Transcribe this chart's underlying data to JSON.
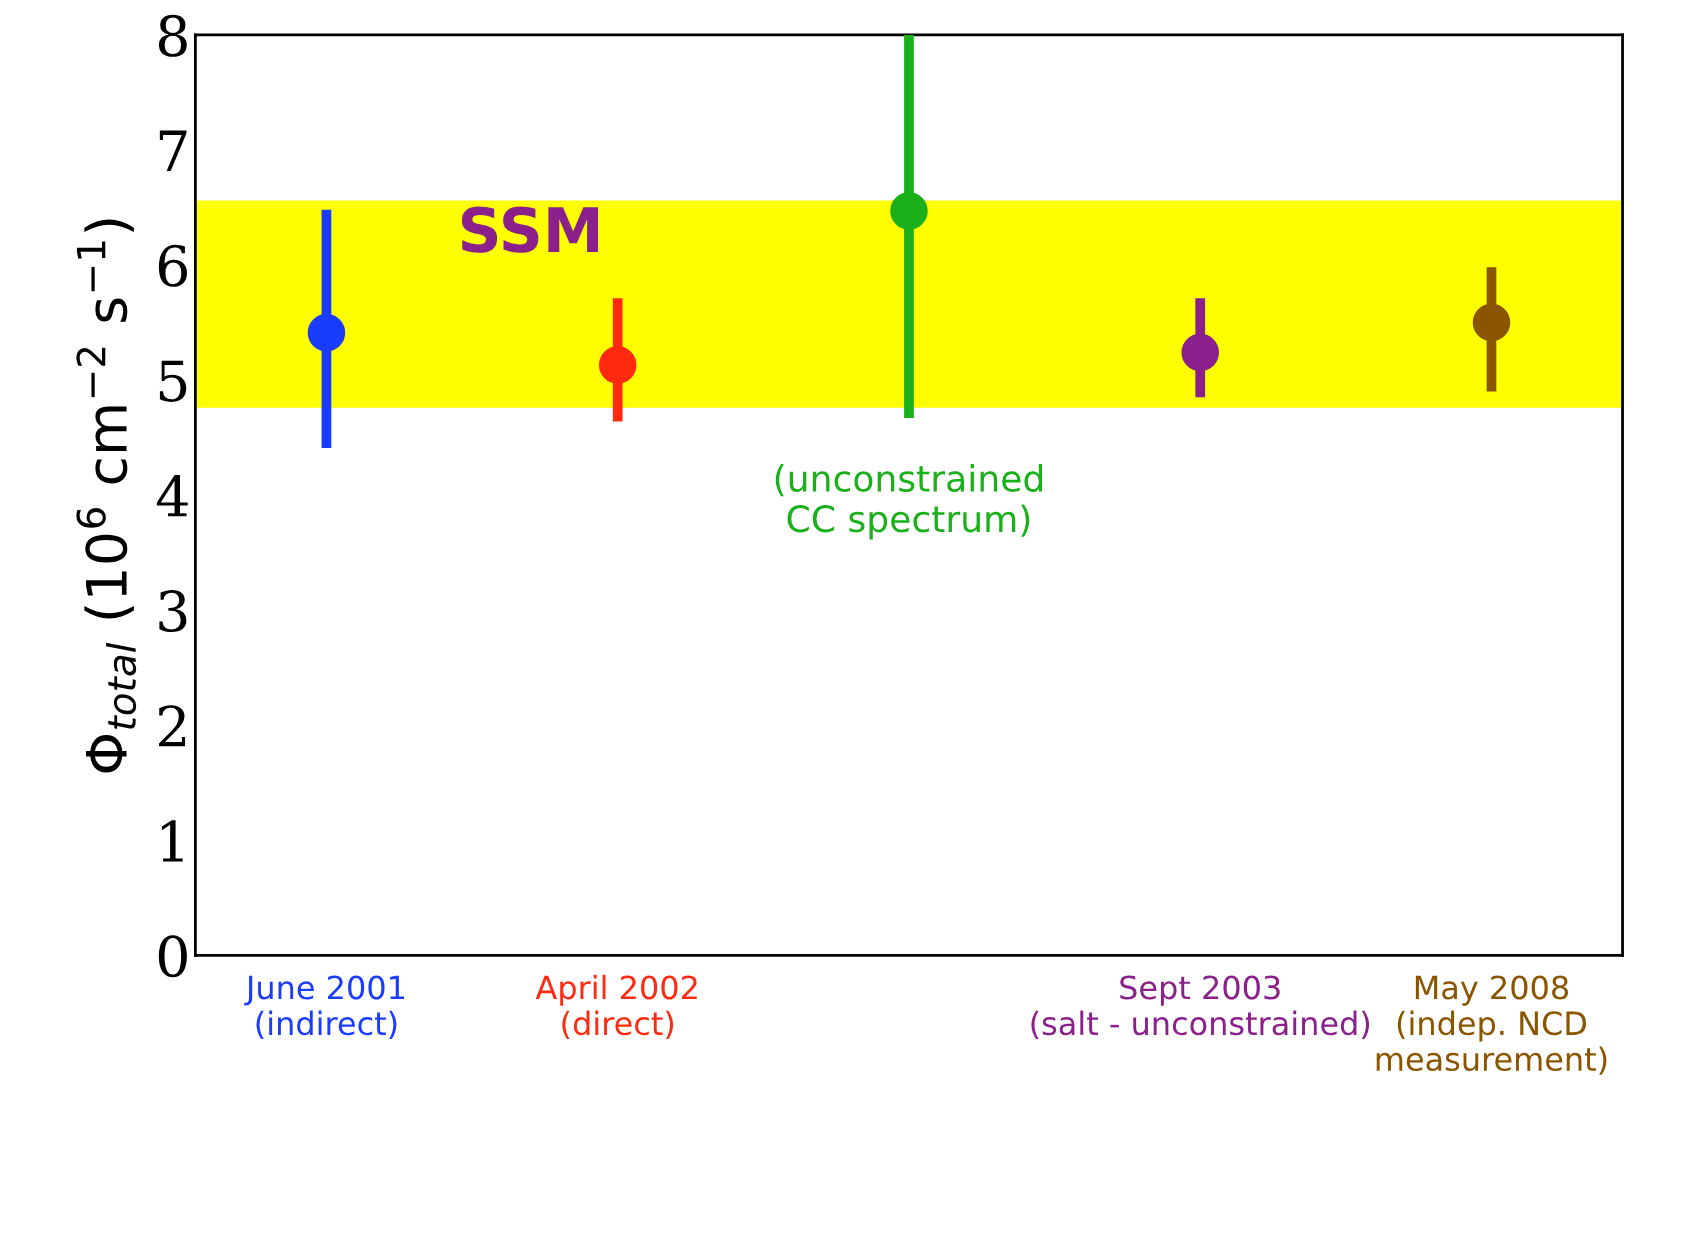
{
  "chart_data": {
    "type": "scatter",
    "ylabel": "Φ$_{total}$ (10$^{6}$ cm$^{−2}$ s$^{−1}$)",
    "categories": [
      "June 2001\n(indirect)",
      "April 2002\n(direct)",
      null,
      "Sept 2003\n(salt - unconstrained)",
      "May 2008\n(indep. NCD\nmeasurement)"
    ],
    "values": [
      5.41,
      5.13,
      6.47,
      5.24,
      5.5
    ],
    "errors": [
      [
        4.41,
        6.48
      ],
      [
        4.64,
        5.71
      ],
      [
        4.67,
        8.0
      ],
      [
        4.85,
        5.71
      ],
      [
        4.9,
        5.98
      ]
    ],
    "colors": [
      "#1a3cff",
      "#ff2a10",
      "#1ab01a",
      "#8b1f8b",
      "#8b5500"
    ],
    "ylim": [
      0,
      8
    ],
    "yticks": [
      0,
      1,
      2,
      3,
      4,
      5,
      6,
      7,
      8
    ],
    "bands": [
      {
        "axis": "y",
        "from": 4.76,
        "to": 6.56,
        "label": "SSM",
        "color": "#ffff00"
      }
    ],
    "annotations": [
      "(unconstrained\nCC spectrum)"
    ],
    "marker": "circle",
    "grid": false
  }
}
